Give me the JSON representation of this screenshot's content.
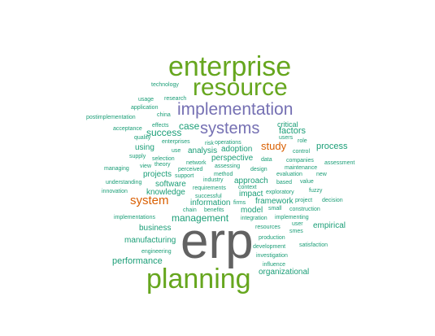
{
  "colors": {
    "grey": "#626262",
    "green": "#66a61e",
    "purple": "#7570b3",
    "orange": "#d95f02",
    "teal": "#1b9e77"
  },
  "words": [
    {
      "text": "erp",
      "color": "grey"
    },
    {
      "text": "enterprise",
      "color": "green"
    },
    {
      "text": "resource",
      "color": "green"
    },
    {
      "text": "planning",
      "color": "green"
    },
    {
      "text": "implementation",
      "color": "purple"
    },
    {
      "text": "systems",
      "color": "purple"
    },
    {
      "text": "system",
      "color": "orange"
    },
    {
      "text": "study",
      "color": "orange"
    },
    {
      "text": "management",
      "color": "teal"
    },
    {
      "text": "success",
      "color": "teal"
    },
    {
      "text": "case",
      "color": "teal"
    },
    {
      "text": "factors",
      "color": "teal"
    },
    {
      "text": "process",
      "color": "teal"
    },
    {
      "text": "performance",
      "color": "teal"
    },
    {
      "text": "manufacturing",
      "color": "teal"
    },
    {
      "text": "business",
      "color": "teal"
    },
    {
      "text": "empirical",
      "color": "teal"
    },
    {
      "text": "model",
      "color": "teal"
    },
    {
      "text": "organizational",
      "color": "teal"
    },
    {
      "text": "approach",
      "color": "teal"
    },
    {
      "text": "perspective",
      "color": "teal"
    },
    {
      "text": "critical",
      "color": "teal"
    },
    {
      "text": "using",
      "color": "teal"
    },
    {
      "text": "analysis",
      "color": "teal"
    },
    {
      "text": "adoption",
      "color": "teal"
    },
    {
      "text": "software",
      "color": "teal"
    },
    {
      "text": "knowledge",
      "color": "teal"
    },
    {
      "text": "projects",
      "color": "teal"
    },
    {
      "text": "information",
      "color": "teal"
    },
    {
      "text": "impact",
      "color": "teal"
    },
    {
      "text": "framework",
      "color": "teal"
    },
    {
      "text": "technology",
      "color": "teal"
    },
    {
      "text": "research",
      "color": "teal"
    },
    {
      "text": "usage",
      "color": "teal"
    },
    {
      "text": "application",
      "color": "teal"
    },
    {
      "text": "china",
      "color": "teal"
    },
    {
      "text": "postimplementation",
      "color": "teal"
    },
    {
      "text": "effects",
      "color": "teal"
    },
    {
      "text": "acceptance",
      "color": "teal"
    },
    {
      "text": "quality",
      "color": "teal"
    },
    {
      "text": "enterprises",
      "color": "teal"
    },
    {
      "text": "use",
      "color": "teal"
    },
    {
      "text": "risk",
      "color": "teal"
    },
    {
      "text": "operations",
      "color": "teal"
    },
    {
      "text": "users",
      "color": "teal"
    },
    {
      "text": "role",
      "color": "teal"
    },
    {
      "text": "control",
      "color": "teal"
    },
    {
      "text": "supply",
      "color": "teal"
    },
    {
      "text": "selection",
      "color": "teal"
    },
    {
      "text": "network",
      "color": "teal"
    },
    {
      "text": "data",
      "color": "teal"
    },
    {
      "text": "companies",
      "color": "teal"
    },
    {
      "text": "assessment",
      "color": "teal"
    },
    {
      "text": "managing",
      "color": "teal"
    },
    {
      "text": "view",
      "color": "teal"
    },
    {
      "text": "theory",
      "color": "teal"
    },
    {
      "text": "perceived",
      "color": "teal"
    },
    {
      "text": "assessing",
      "color": "teal"
    },
    {
      "text": "design",
      "color": "teal"
    },
    {
      "text": "maintenance",
      "color": "teal"
    },
    {
      "text": "method",
      "color": "teal"
    },
    {
      "text": "evaluation",
      "color": "teal"
    },
    {
      "text": "new",
      "color": "teal"
    },
    {
      "text": "understanding",
      "color": "teal"
    },
    {
      "text": "support",
      "color": "teal"
    },
    {
      "text": "industry",
      "color": "teal"
    },
    {
      "text": "based",
      "color": "teal"
    },
    {
      "text": "value",
      "color": "teal"
    },
    {
      "text": "innovation",
      "color": "teal"
    },
    {
      "text": "requirements",
      "color": "teal"
    },
    {
      "text": "context",
      "color": "teal"
    },
    {
      "text": "exploratory",
      "color": "teal"
    },
    {
      "text": "fuzzy",
      "color": "teal"
    },
    {
      "text": "successful",
      "color": "teal"
    },
    {
      "text": "project",
      "color": "teal"
    },
    {
      "text": "decision",
      "color": "teal"
    },
    {
      "text": "firms",
      "color": "teal"
    },
    {
      "text": "small",
      "color": "teal"
    },
    {
      "text": "construction",
      "color": "teal"
    },
    {
      "text": "chain",
      "color": "teal"
    },
    {
      "text": "benefits",
      "color": "teal"
    },
    {
      "text": "implementations",
      "color": "teal"
    },
    {
      "text": "integration",
      "color": "teal"
    },
    {
      "text": "implementing",
      "color": "teal"
    },
    {
      "text": "user",
      "color": "teal"
    },
    {
      "text": "smes",
      "color": "teal"
    },
    {
      "text": "resources",
      "color": "teal"
    },
    {
      "text": "production",
      "color": "teal"
    },
    {
      "text": "development",
      "color": "teal"
    },
    {
      "text": "satisfaction",
      "color": "teal"
    },
    {
      "text": "engineering",
      "color": "teal"
    },
    {
      "text": "investigation",
      "color": "teal"
    },
    {
      "text": "influence",
      "color": "teal"
    }
  ]
}
